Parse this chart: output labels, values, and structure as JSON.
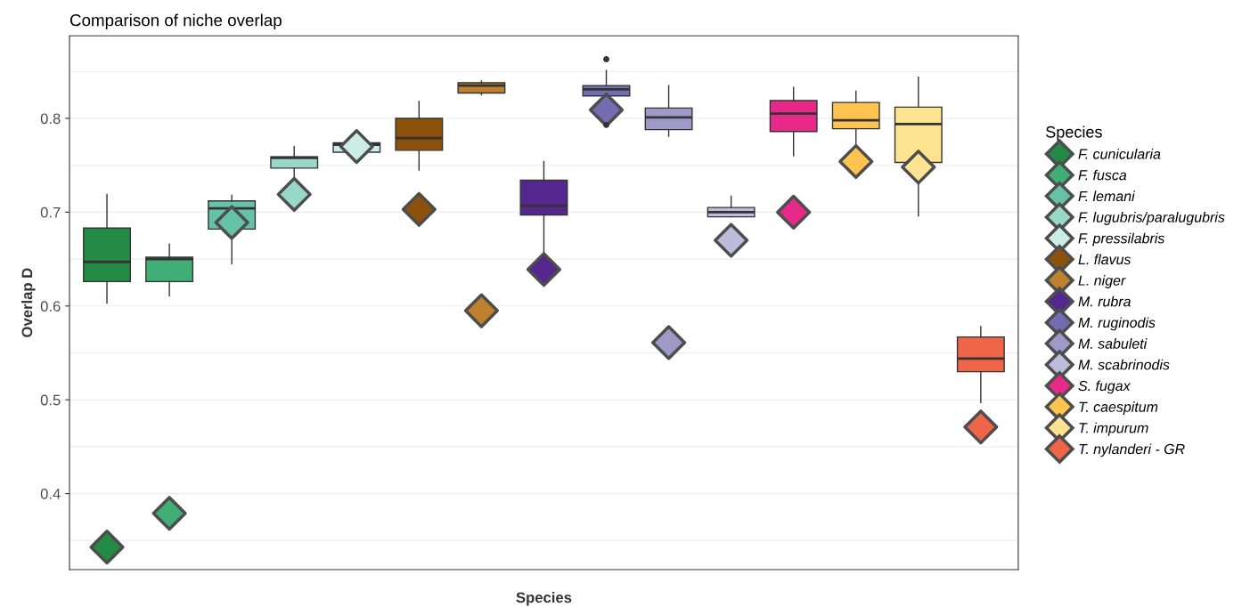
{
  "chart_data": {
    "type": "box",
    "title": "Comparison of niche overlap",
    "xlabel": "Species",
    "ylabel": "Overlap D",
    "legend_title": "Species",
    "legend": "right",
    "grid": "y",
    "tick_labels": "y",
    "categories": [
      null,
      null,
      null,
      null,
      null,
      null,
      null,
      null,
      null,
      null,
      null,
      null,
      null,
      null,
      null
    ],
    "ylim": [
      0.319,
      0.888
    ],
    "yticks": [
      {
        "value": 0.4,
        "label": "0.4"
      },
      {
        "value": 0.5,
        "label": "0.5"
      },
      {
        "value": 0.6,
        "label": "0.6"
      },
      {
        "value": 0.7,
        "label": "0.7"
      },
      {
        "value": 0.8,
        "label": "0.8"
      }
    ],
    "series": [
      {
        "name": "F. cunicularia",
        "color": "#238b45",
        "boxes": [
          {
            "low": 0.603,
            "q1": 0.626,
            "median": 0.647,
            "q3": 0.683,
            "high": 0.719
          },
          null,
          null,
          null,
          null,
          null,
          null,
          null,
          null,
          null,
          null,
          null,
          null,
          null,
          null
        ]
      },
      {
        "name": "F. fusca",
        "color": "#41ae76",
        "boxes": [
          null,
          {
            "low": 0.611,
            "q1": 0.626,
            "median": 0.65,
            "q3": 0.652,
            "high": 0.666
          },
          null,
          null,
          null,
          null,
          null,
          null,
          null,
          null,
          null,
          null,
          null,
          null,
          null
        ]
      },
      {
        "name": "F. lemani",
        "color": "#66c2a4",
        "boxes": [
          null,
          null,
          {
            "low": 0.645,
            "q1": 0.682,
            "median": 0.704,
            "q3": 0.712,
            "high": 0.718
          },
          null,
          null,
          null,
          null,
          null,
          null,
          null,
          null,
          null,
          null,
          null,
          null
        ]
      },
      {
        "name": "F. lugubris/paralugubris",
        "color": "#99d8c9",
        "boxes": [
          null,
          null,
          null,
          {
            "low": 0.737,
            "q1": 0.747,
            "median": 0.758,
            "q3": 0.759,
            "high": 0.77
          },
          null,
          null,
          null,
          null,
          null,
          null,
          null,
          null,
          null,
          null,
          null
        ]
      },
      {
        "name": "F. pressilabris",
        "color": "#ccece6",
        "boxes": [
          null,
          null,
          null,
          null,
          {
            "low": 0.762,
            "q1": 0.764,
            "median": 0.772,
            "q3": 0.774,
            "high": 0.776
          },
          null,
          null,
          null,
          null,
          null,
          null,
          null,
          null,
          null,
          null
        ]
      },
      {
        "name": "L. flavus",
        "color": "#8c510a",
        "boxes": [
          null,
          null,
          null,
          null,
          null,
          {
            "low": 0.745,
            "q1": 0.766,
            "median": 0.779,
            "q3": 0.8,
            "high": 0.818
          },
          null,
          null,
          null,
          null,
          null,
          null,
          null,
          null,
          null
        ]
      },
      {
        "name": "L. niger",
        "color": "#bf812d",
        "boxes": [
          null,
          null,
          null,
          null,
          null,
          null,
          {
            "low": 0.825,
            "q1": 0.827,
            "median": 0.835,
            "q3": 0.838,
            "high": 0.84
          },
          null,
          null,
          null,
          null,
          null,
          null,
          null,
          null
        ]
      },
      {
        "name": "M. rubra",
        "color": "#54278f",
        "boxes": [
          null,
          null,
          null,
          null,
          null,
          null,
          null,
          {
            "low": 0.651,
            "q1": 0.697,
            "median": 0.707,
            "q3": 0.734,
            "high": 0.754
          },
          null,
          null,
          null,
          null,
          null,
          null,
          null
        ]
      },
      {
        "name": "M. ruginodis",
        "color": "#756bb1",
        "boxes": [
          null,
          null,
          null,
          null,
          null,
          null,
          null,
          null,
          {
            "low": 0.816,
            "q1": 0.824,
            "median": 0.831,
            "q3": 0.835,
            "high": 0.851,
            "outliers": [
              0.863,
              0.793
            ]
          },
          null,
          null,
          null,
          null,
          null,
          null
        ]
      },
      {
        "name": "M. sabuleti",
        "color": "#9e9ac8",
        "boxes": [
          null,
          null,
          null,
          null,
          null,
          null,
          null,
          null,
          null,
          {
            "low": 0.781,
            "q1": 0.788,
            "median": 0.801,
            "q3": 0.811,
            "high": 0.835
          },
          null,
          null,
          null,
          null,
          null
        ]
      },
      {
        "name": "M. scabrinodis",
        "color": "#bcbddc",
        "boxes": [
          null,
          null,
          null,
          null,
          null,
          null,
          null,
          null,
          null,
          null,
          {
            "low": 0.695,
            "q1": 0.695,
            "median": 0.7,
            "q3": 0.705,
            "high": 0.717
          },
          null,
          null,
          null,
          null
        ]
      },
      {
        "name": "S. fugax",
        "color": "#e7298a",
        "boxes": [
          null,
          null,
          null,
          null,
          null,
          null,
          null,
          null,
          null,
          null,
          null,
          {
            "low": 0.76,
            "q1": 0.786,
            "median": 0.805,
            "q3": 0.819,
            "high": 0.833
          },
          null,
          null,
          null
        ]
      },
      {
        "name": "T. caespitum",
        "color": "#fec44f",
        "boxes": [
          null,
          null,
          null,
          null,
          null,
          null,
          null,
          null,
          null,
          null,
          null,
          null,
          {
            "low": 0.77,
            "q1": 0.789,
            "median": 0.798,
            "q3": 0.817,
            "high": 0.829
          },
          null,
          null
        ]
      },
      {
        "name": "T. impurum",
        "color": "#fee391",
        "boxes": [
          null,
          null,
          null,
          null,
          null,
          null,
          null,
          null,
          null,
          null,
          null,
          null,
          null,
          {
            "low": 0.696,
            "q1": 0.753,
            "median": 0.794,
            "q3": 0.812,
            "high": 0.844
          },
          null
        ]
      },
      {
        "name": "T. nylanderi - GR",
        "color": "#ef6548",
        "boxes": [
          null,
          null,
          null,
          null,
          null,
          null,
          null,
          null,
          null,
          null,
          null,
          null,
          null,
          null,
          {
            "low": 0.497,
            "q1": 0.53,
            "median": 0.544,
            "q3": 0.567,
            "high": 0.578
          }
        ]
      },
      {
        "type": "scatter",
        "marker": "diamond",
        "colors": [
          "#238b45",
          "#41ae76",
          "#66c2a4",
          "#99d8c9",
          "#ccece6",
          "#8c510a",
          "#bf812d",
          "#54278f",
          "#756bb1",
          "#9e9ac8",
          "#bcbddc",
          "#e7298a",
          "#fec44f",
          "#fee391",
          "#ef6548"
        ],
        "values": [
          0.343,
          0.379,
          0.689,
          0.719,
          0.77,
          0.703,
          0.595,
          0.639,
          0.809,
          0.561,
          0.67,
          0.7,
          0.754,
          0.748,
          0.471
        ]
      }
    ]
  }
}
